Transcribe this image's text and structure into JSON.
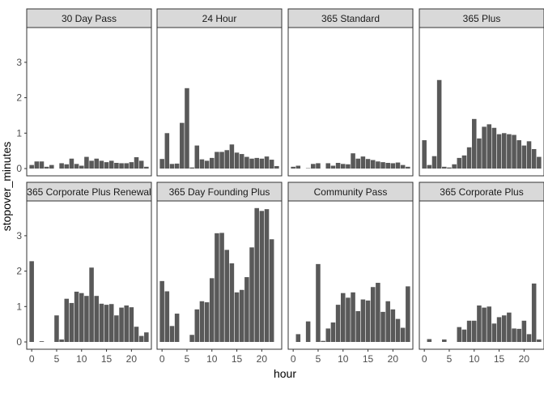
{
  "chart_data": {
    "type": "bar",
    "layout": "faceted 2x4",
    "xlabel": "hour",
    "ylabel": "stopover_minutes",
    "xlim": [
      -1,
      24
    ],
    "ylim": [
      0,
      4
    ],
    "x_ticks": [
      0,
      5,
      10,
      15,
      20
    ],
    "y_ticks": [
      0,
      1,
      2,
      3
    ],
    "grid": false,
    "bar_color": "#595959",
    "strip_color": "#d9d9d9",
    "facets": [
      {
        "name": "30 Day Pass",
        "x": [
          0,
          1,
          2,
          3,
          4,
          5,
          6,
          7,
          8,
          9,
          10,
          11,
          12,
          13,
          14,
          15,
          16,
          17,
          18,
          19,
          20,
          21,
          22,
          23
        ],
        "values": [
          0.1,
          0.2,
          0.2,
          0.05,
          0.1,
          0,
          0.15,
          0.12,
          0.28,
          0.13,
          0.08,
          0.33,
          0.22,
          0.28,
          0.22,
          0.18,
          0.22,
          0.16,
          0.15,
          0.15,
          0.18,
          0.32,
          0.22,
          0.05
        ]
      },
      {
        "name": "24 Hour",
        "x": [
          0,
          1,
          2,
          3,
          4,
          5,
          6,
          7,
          8,
          9,
          10,
          11,
          12,
          13,
          14,
          15,
          16,
          17,
          18,
          19,
          20,
          21,
          22,
          23
        ],
        "values": [
          0.27,
          1.0,
          0.13,
          0.14,
          1.29,
          2.27,
          0.03,
          0.65,
          0.26,
          0.22,
          0.3,
          0.47,
          0.47,
          0.52,
          0.68,
          0.45,
          0.41,
          0.33,
          0.28,
          0.3,
          0.28,
          0.34,
          0.25,
          0.07
        ]
      },
      {
        "name": "365 Standard",
        "x": [
          0,
          1,
          2,
          3,
          4,
          5,
          6,
          7,
          8,
          9,
          10,
          11,
          12,
          13,
          14,
          15,
          16,
          17,
          18,
          19,
          20,
          21,
          22,
          23
        ],
        "values": [
          0.05,
          0.08,
          0,
          0.01,
          0.13,
          0.15,
          0,
          0.15,
          0.08,
          0.16,
          0.13,
          0.12,
          0.43,
          0.28,
          0.34,
          0.27,
          0.24,
          0.2,
          0.18,
          0.16,
          0.15,
          0.17,
          0.1,
          0.05
        ]
      },
      {
        "name": "365 Plus",
        "x": [
          0,
          1,
          2,
          3,
          4,
          5,
          6,
          7,
          8,
          9,
          10,
          11,
          12,
          13,
          14,
          15,
          16,
          17,
          18,
          19,
          20,
          21,
          22,
          23
        ],
        "values": [
          0.8,
          0.1,
          0.35,
          2.5,
          0.05,
          0.03,
          0.12,
          0.3,
          0.37,
          0.6,
          1.4,
          0.85,
          1.18,
          1.25,
          1.15,
          0.97,
          1.0,
          0.97,
          0.95,
          0.8,
          0.65,
          0.77,
          0.55,
          0.33
        ]
      },
      {
        "name": "365 Corporate Plus Renewal",
        "x": [
          0,
          1,
          2,
          3,
          4,
          5,
          6,
          7,
          8,
          9,
          10,
          11,
          12,
          13,
          14,
          15,
          16,
          17,
          18,
          19,
          20,
          21,
          22,
          23
        ],
        "values": [
          2.28,
          0,
          0.02,
          0,
          0,
          0.75,
          0.07,
          1.22,
          1.1,
          1.42,
          1.38,
          1.3,
          2.1,
          1.3,
          1.08,
          1.05,
          1.07,
          0.75,
          0.97,
          1.03,
          0.98,
          0.43,
          0.17,
          0.27
        ]
      },
      {
        "name": "365 Day Founding Plus",
        "x": [
          0,
          1,
          2,
          3,
          4,
          5,
          6,
          7,
          8,
          9,
          10,
          11,
          12,
          13,
          14,
          15,
          16,
          17,
          18,
          19,
          20,
          21,
          22,
          23
        ],
        "values": [
          1.72,
          1.43,
          0.45,
          0.8,
          0,
          0,
          0.2,
          0.92,
          1.15,
          1.12,
          1.8,
          3.07,
          3.08,
          2.6,
          2.22,
          1.4,
          1.47,
          1.83,
          2.67,
          3.78,
          3.7,
          3.75,
          2.9,
          0
        ]
      },
      {
        "name": "Community Pass",
        "x": [
          0,
          1,
          2,
          3,
          4,
          5,
          6,
          7,
          8,
          9,
          10,
          11,
          12,
          13,
          14,
          15,
          16,
          17,
          18,
          19,
          20,
          21,
          22,
          23
        ],
        "values": [
          0,
          0.22,
          0,
          0.58,
          0,
          2.2,
          0.03,
          0.38,
          0.55,
          1.05,
          1.38,
          1.25,
          1.4,
          0.87,
          1.2,
          1.17,
          1.55,
          1.67,
          0.85,
          1.15,
          0.92,
          0.65,
          0.4,
          1.57
        ]
      },
      {
        "name": "365 Corporate Plus",
        "x": [
          0,
          1,
          2,
          3,
          4,
          5,
          6,
          7,
          8,
          9,
          10,
          11,
          12,
          13,
          14,
          15,
          16,
          17,
          18,
          19,
          20,
          21,
          22,
          23
        ],
        "values": [
          0,
          0.08,
          0,
          0,
          0.07,
          0,
          0,
          0.42,
          0.35,
          0.6,
          0.6,
          1.03,
          0.97,
          1.0,
          0.52,
          0.7,
          0.75,
          0.83,
          0.38,
          0.37,
          0.6,
          0.22,
          1.65,
          0.07
        ]
      }
    ]
  }
}
